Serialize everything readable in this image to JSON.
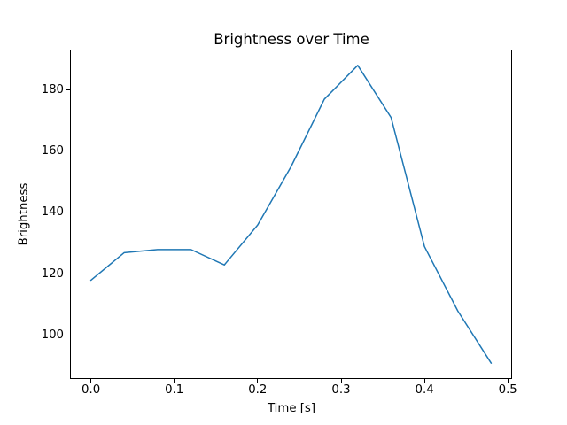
{
  "chart_data": {
    "type": "line",
    "title": "Brightness over Time",
    "xlabel": "Time [s]",
    "ylabel": "Brightness",
    "x": [
      0.0,
      0.04,
      0.08,
      0.12,
      0.16,
      0.2,
      0.24,
      0.28,
      0.32,
      0.36,
      0.4,
      0.44,
      0.48
    ],
    "y": [
      118,
      127,
      128,
      128,
      123,
      136,
      155,
      177,
      188,
      171,
      129,
      108,
      91
    ],
    "line_color": "#1f77b4",
    "xlim": [
      -0.024,
      0.504
    ],
    "ylim": [
      86.15,
      192.85
    ],
    "xticks": [
      {
        "value": 0.0,
        "label": "0.0"
      },
      {
        "value": 0.1,
        "label": "0.1"
      },
      {
        "value": 0.2,
        "label": "0.2"
      },
      {
        "value": 0.3,
        "label": "0.3"
      },
      {
        "value": 0.4,
        "label": "0.4"
      },
      {
        "value": 0.5,
        "label": "0.5"
      }
    ],
    "yticks": [
      {
        "value": 100,
        "label": "100"
      },
      {
        "value": 120,
        "label": "120"
      },
      {
        "value": 140,
        "label": "140"
      },
      {
        "value": 160,
        "label": "160"
      },
      {
        "value": 180,
        "label": "180"
      }
    ],
    "grid": false,
    "legend_position": "none",
    "axis_color": "#000000",
    "text_color": "#000000",
    "background_color": "#ffffff"
  }
}
